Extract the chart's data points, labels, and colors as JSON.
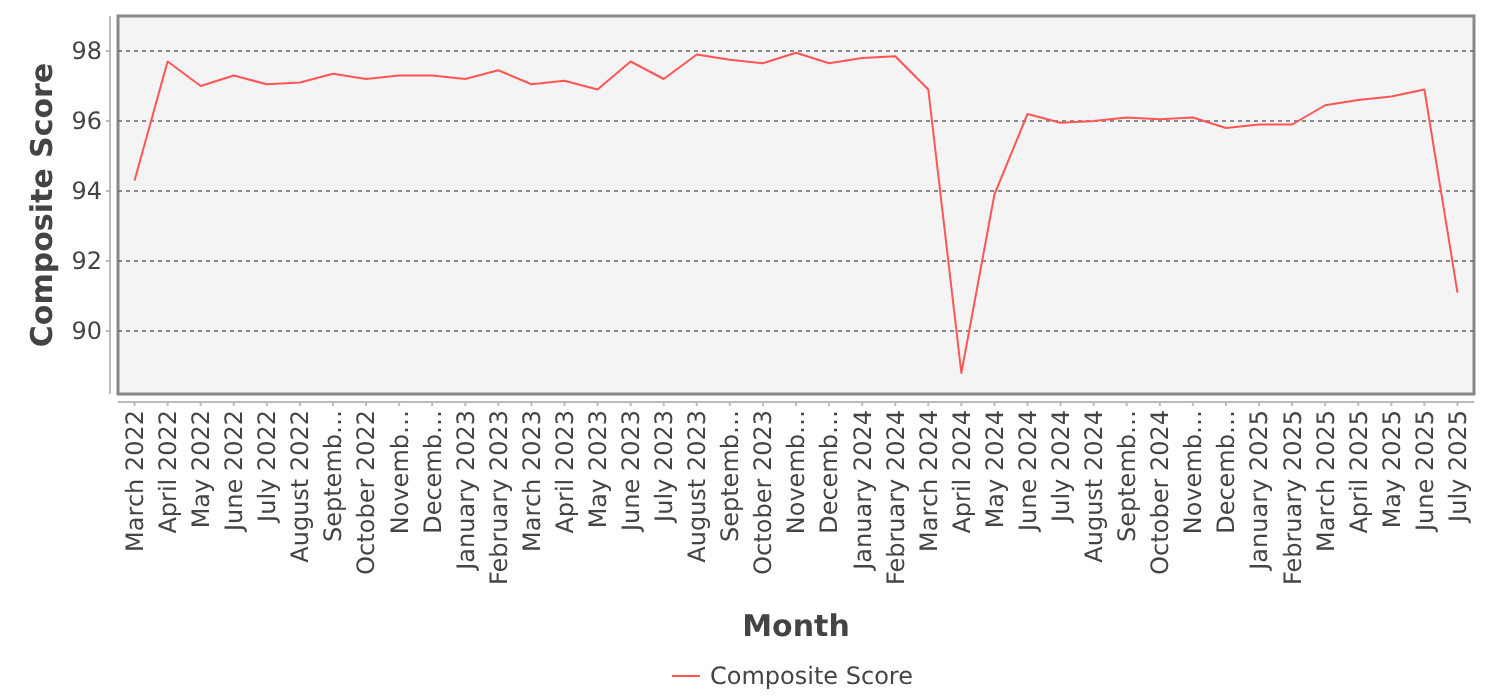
{
  "chart_data": {
    "type": "line",
    "xlabel": "Month",
    "ylabel": "Composite Score",
    "categories": [
      "March 2022",
      "April 2022",
      "May 2022",
      "June 2022",
      "July 2022",
      "August 2022",
      "Septemb…",
      "October 2022",
      "Novemb…",
      "Decemb…",
      "January 2023",
      "February 2023",
      "March 2023",
      "April 2023",
      "May 2023",
      "June 2023",
      "July 2023",
      "August 2023",
      "Septemb…",
      "October 2023",
      "Novemb…",
      "Decemb…",
      "January 2024",
      "February 2024",
      "March 2024",
      "April 2024",
      "May 2024",
      "June 2024",
      "July 2024",
      "August 2024",
      "Septemb…",
      "October 2024",
      "Novemb…",
      "Decemb…",
      "January 2025",
      "February 2025",
      "March 2025",
      "April 2025",
      "May 2025",
      "June 2025",
      "July 2025"
    ],
    "series": [
      {
        "name": "Composite Score",
        "color": "#ff5555",
        "values": [
          94.3,
          97.7,
          97.0,
          97.3,
          97.05,
          97.1,
          97.35,
          97.2,
          97.3,
          97.3,
          97.2,
          97.45,
          97.05,
          97.15,
          96.9,
          97.7,
          97.2,
          97.9,
          97.75,
          97.65,
          97.95,
          97.65,
          97.8,
          97.85,
          96.9,
          88.8,
          93.9,
          96.2,
          95.95,
          96.0,
          96.1,
          96.05,
          96.1,
          95.8,
          95.9,
          95.9,
          96.45,
          96.6,
          96.7,
          96.9,
          91.1
        ]
      }
    ],
    "ylim": [
      88.2,
      99
    ],
    "yticks": [
      90,
      92,
      94,
      96,
      98
    ],
    "grid": "y",
    "legend": "bottom",
    "marker": "none",
    "line_style": "solid"
  }
}
